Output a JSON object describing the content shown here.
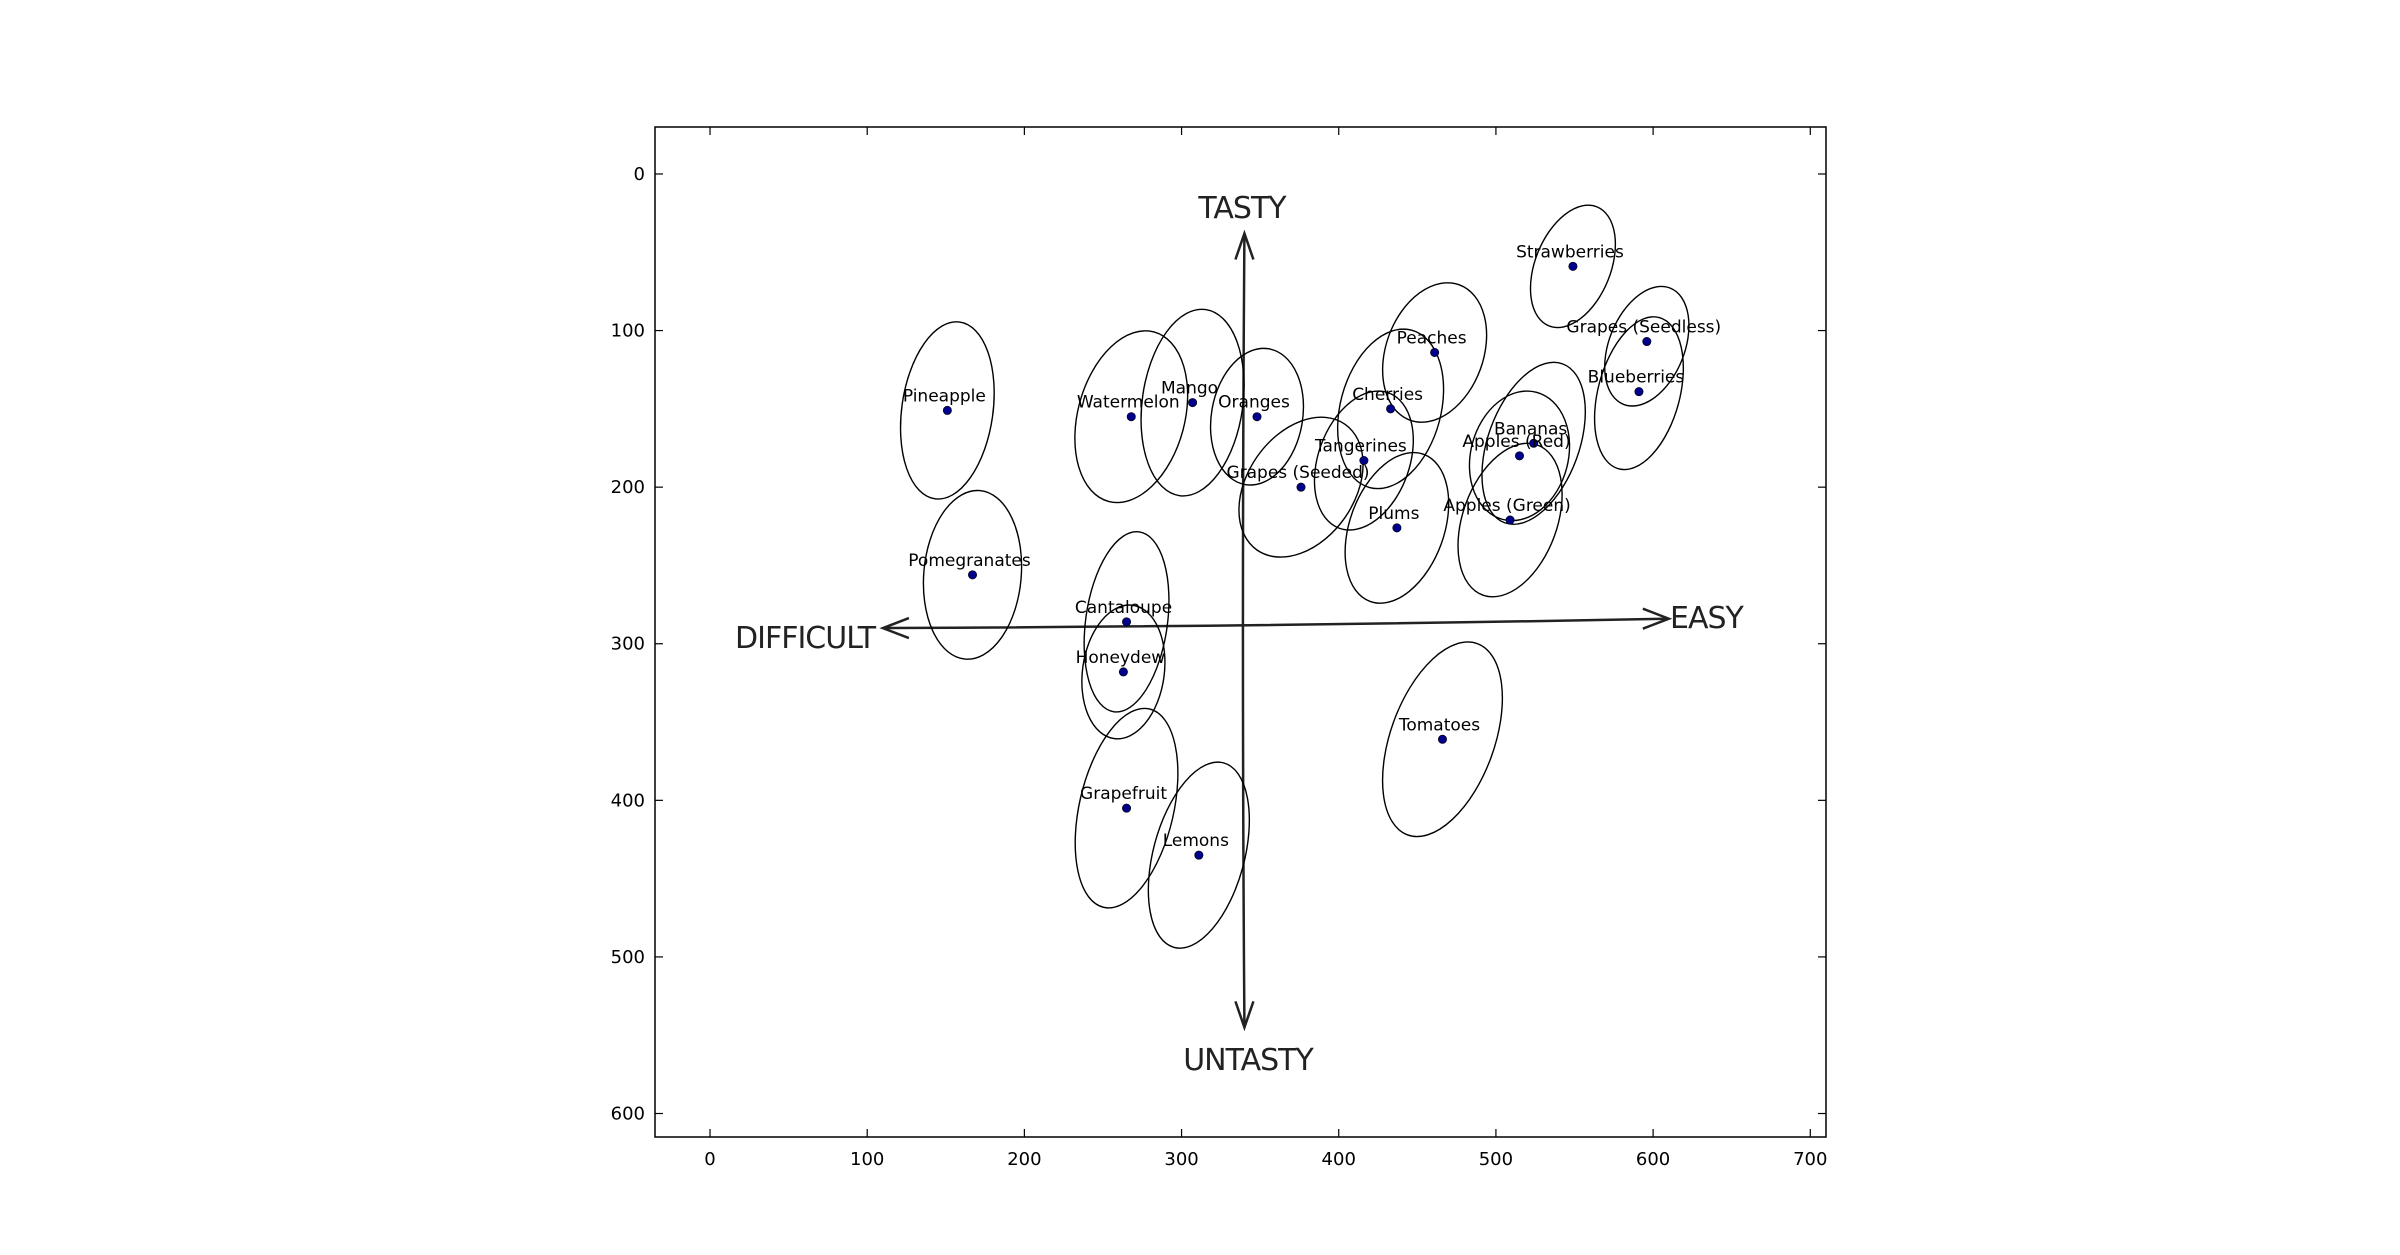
{
  "chart_data": {
    "type": "scatter",
    "title": "",
    "xlabel": "",
    "ylabel": "",
    "xlim": [
      -35,
      710
    ],
    "ylim": [
      615,
      -30
    ],
    "y_inverted": true,
    "grid": false,
    "xticks": [
      "0",
      "100",
      "200",
      "300",
      "400",
      "500",
      "600",
      "700"
    ],
    "yticks": [
      "0",
      "100",
      "200",
      "300",
      "400",
      "500",
      "600"
    ],
    "axis_labels": {
      "top": "TASTY",
      "bottom": "UNTASTY",
      "left": "DIFFICULT",
      "right": "EASY"
    },
    "arrows": {
      "horizontal": {
        "from": [
          110,
          290
        ],
        "to": [
          610,
          284
        ]
      },
      "vertical": {
        "from": [
          340,
          545
        ],
        "to": [
          340,
          38
        ]
      }
    },
    "point_color": "#00008b",
    "points": [
      {
        "label": "Strawberries",
        "x": 549,
        "y": 59
      },
      {
        "label": "Grapes (Seedless)",
        "x": 596,
        "y": 107
      },
      {
        "label": "Blueberries",
        "x": 591,
        "y": 139
      },
      {
        "label": "Peaches",
        "x": 461,
        "y": 114
      },
      {
        "label": "Pineapple",
        "x": 151,
        "y": 151
      },
      {
        "label": "Mango",
        "x": 307,
        "y": 146
      },
      {
        "label": "Watermelon",
        "x": 268,
        "y": 155
      },
      {
        "label": "Oranges",
        "x": 348,
        "y": 155
      },
      {
        "label": "Cherries",
        "x": 433,
        "y": 150
      },
      {
        "label": "Bananas",
        "x": 524,
        "y": 172
      },
      {
        "label": "Tangerines",
        "x": 416,
        "y": 183
      },
      {
        "label": "Apples (Red)",
        "x": 515,
        "y": 180
      },
      {
        "label": "Grapes (Seeded)",
        "x": 376,
        "y": 200
      },
      {
        "label": "Plums",
        "x": 437,
        "y": 226
      },
      {
        "label": "Apples (Green)",
        "x": 509,
        "y": 221
      },
      {
        "label": "Pomegranates",
        "x": 167,
        "y": 256
      },
      {
        "label": "Cantaloupe",
        "x": 265,
        "y": 286
      },
      {
        "label": "Honeydew",
        "x": 263,
        "y": 318
      },
      {
        "label": "Tomatoes",
        "x": 466,
        "y": 361
      },
      {
        "label": "Grapefruit",
        "x": 265,
        "y": 405
      },
      {
        "label": "Lemons",
        "x": 311,
        "y": 435
      }
    ],
    "ellipses": [
      {
        "cx": 549,
        "cy": 59,
        "rx": 24,
        "ry": 41,
        "angle": 22
      },
      {
        "cx": 596,
        "cy": 110,
        "rx": 24,
        "ry": 40,
        "angle": 22
      },
      {
        "cx": 591,
        "cy": 140,
        "rx": 26,
        "ry": 50,
        "angle": 15
      },
      {
        "cx": 461,
        "cy": 114,
        "rx": 31,
        "ry": 46,
        "angle": 20
      },
      {
        "cx": 151,
        "cy": 151,
        "rx": 29,
        "ry": 57,
        "angle": 8
      },
      {
        "cx": 307,
        "cy": 146,
        "rx": 32,
        "ry": 60,
        "angle": 8
      },
      {
        "cx": 268,
        "cy": 155,
        "rx": 34,
        "ry": 56,
        "angle": 15
      },
      {
        "cx": 348,
        "cy": 155,
        "rx": 29,
        "ry": 44,
        "angle": 10
      },
      {
        "cx": 433,
        "cy": 150,
        "rx": 32,
        "ry": 52,
        "angle": 15
      },
      {
        "cx": 524,
        "cy": 172,
        "rx": 29,
        "ry": 54,
        "angle": 20
      },
      {
        "cx": 416,
        "cy": 183,
        "rx": 29,
        "ry": 46,
        "angle": 20
      },
      {
        "cx": 515,
        "cy": 180,
        "rx": 31,
        "ry": 42,
        "angle": 15
      },
      {
        "cx": 376,
        "cy": 200,
        "rx": 34,
        "ry": 49,
        "angle": 35
      },
      {
        "cx": 437,
        "cy": 226,
        "rx": 30,
        "ry": 50,
        "angle": 20
      },
      {
        "cx": 509,
        "cy": 221,
        "rx": 30,
        "ry": 51,
        "angle": 20
      },
      {
        "cx": 167,
        "cy": 256,
        "rx": 31,
        "ry": 54,
        "angle": 5
      },
      {
        "cx": 265,
        "cy": 286,
        "rx": 26,
        "ry": 58,
        "angle": 8
      },
      {
        "cx": 263,
        "cy": 318,
        "rx": 26,
        "ry": 43,
        "angle": 8
      },
      {
        "cx": 466,
        "cy": 361,
        "rx": 33,
        "ry": 65,
        "angle": 20
      },
      {
        "cx": 265,
        "cy": 405,
        "rx": 30,
        "ry": 65,
        "angle": 13
      },
      {
        "cx": 311,
        "cy": 435,
        "rx": 29,
        "ry": 61,
        "angle": 15
      }
    ]
  }
}
